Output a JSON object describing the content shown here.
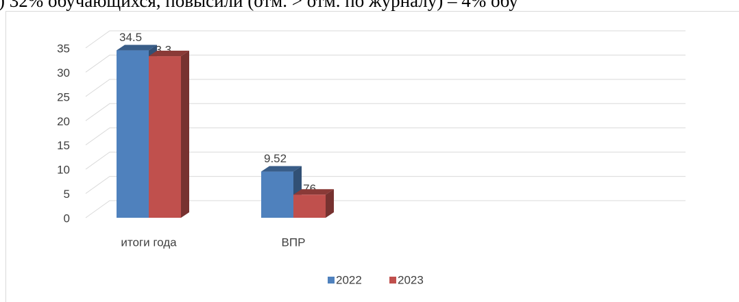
{
  "caption": ")   32% обучающихся, повысили (отм. > отм. по журналу) – 4% обу",
  "chart_data": {
    "type": "bar3d",
    "categories": [
      "итоги года",
      "ВПР"
    ],
    "series": [
      {
        "name": "2022",
        "color": "#4f81bd",
        "values": [
          34.5,
          9.52
        ],
        "value_labels": [
          "34.5",
          "9.52"
        ]
      },
      {
        "name": "2023",
        "color": "#c0504d",
        "values": [
          33.3,
          4.76
        ],
        "value_labels": [
          "33.3",
          "4.76"
        ]
      }
    ],
    "ylim": [
      0,
      35
    ],
    "yticks": [
      0,
      5,
      10,
      15,
      20,
      25,
      30,
      35
    ],
    "grid": true,
    "legend": "bottom"
  }
}
